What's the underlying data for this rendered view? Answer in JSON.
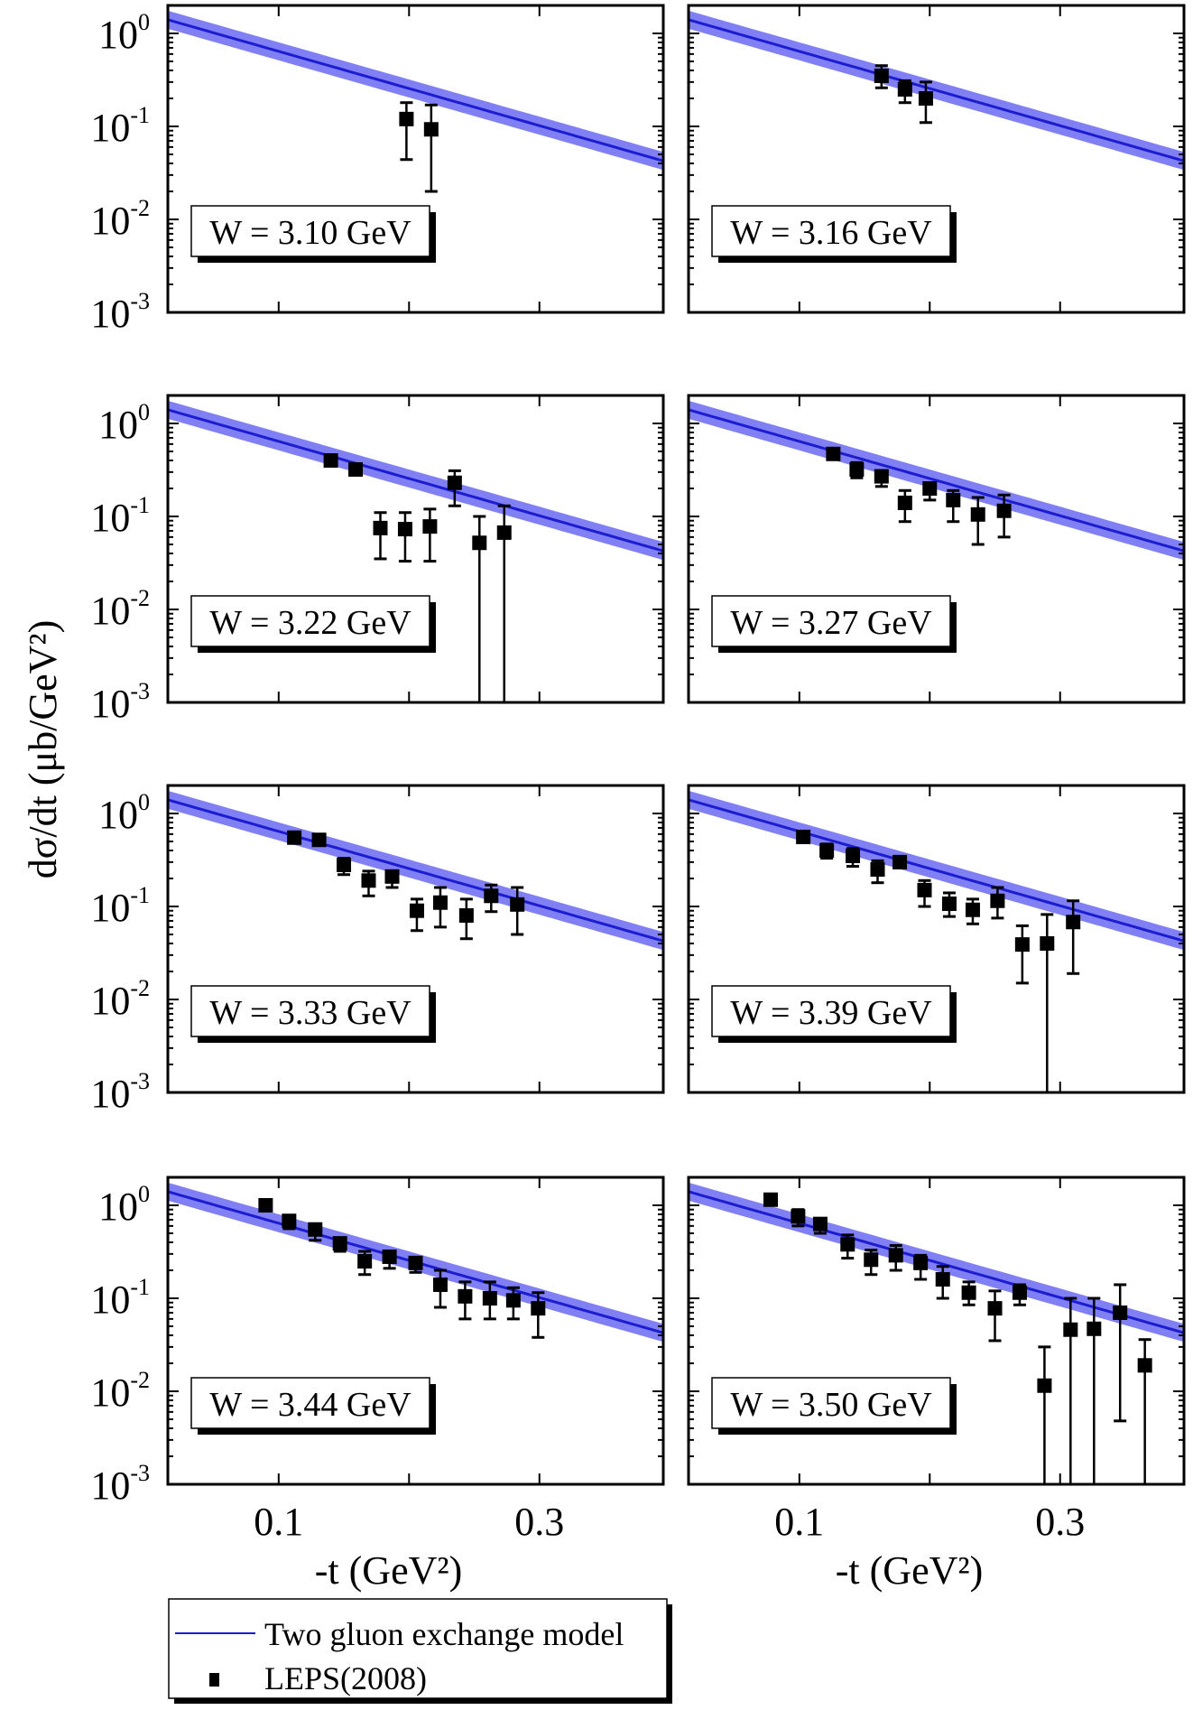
{
  "chart_data": {
    "type": "scatter",
    "layout": "4x2 panels",
    "xlabel": "-t (GeV²)",
    "ylabel": "dσ/dt   (μb/GeV²)",
    "xlim": [
      0.015,
      0.395
    ],
    "ylim": [
      0.001,
      2.0
    ],
    "yscale": "log",
    "xtick_labels": [
      "0.1",
      "0.3"
    ],
    "xticks": [
      0.1,
      0.2,
      0.3
    ],
    "ytick_labels": [
      {
        "base": "10",
        "exp": "0",
        "value": 1
      },
      {
        "base": "10",
        "exp": "-1",
        "value": 0.1
      },
      {
        "base": "10",
        "exp": "-2",
        "value": 0.01
      },
      {
        "base": "10",
        "exp": "-3",
        "value": 0.001
      }
    ],
    "legend": {
      "placement": "bottom-left",
      "entries": [
        {
          "label": "Two gluon exchange model",
          "type": "line"
        },
        {
          "label": "LEPS(2008)",
          "type": "marker"
        }
      ]
    },
    "colors": {
      "model_line": "#1c1cd0",
      "model_band": "#8080f4",
      "data": "#000000"
    },
    "model": {
      "form": "A*exp(-b*t)",
      "A": 1.61,
      "b": 9.2,
      "band_factor": 1.25
    },
    "panels": [
      {
        "label": "W = 3.10 GeV",
        "points": [
          {
            "x": 0.198,
            "y": 0.12,
            "hi": 0.18,
            "lo": 0.044
          },
          {
            "x": 0.217,
            "y": 0.093,
            "hi": 0.17,
            "lo": 0.02
          }
        ]
      },
      {
        "label": "W = 3.16 GeV",
        "points": [
          {
            "x": 0.163,
            "y": 0.35,
            "hi": 0.45,
            "lo": 0.26
          },
          {
            "x": 0.181,
            "y": 0.25,
            "hi": 0.31,
            "lo": 0.18
          },
          {
            "x": 0.197,
            "y": 0.2,
            "hi": 0.3,
            "lo": 0.11
          }
        ]
      },
      {
        "label": "W = 3.22 GeV",
        "points": [
          {
            "x": 0.14,
            "y": 0.4,
            "hi": 0.44,
            "lo": 0.36
          },
          {
            "x": 0.159,
            "y": 0.32,
            "hi": 0.36,
            "lo": 0.28
          },
          {
            "x": 0.178,
            "y": 0.075,
            "hi": 0.11,
            "lo": 0.035
          },
          {
            "x": 0.197,
            "y": 0.073,
            "hi": 0.11,
            "lo": 0.033
          },
          {
            "x": 0.216,
            "y": 0.078,
            "hi": 0.12,
            "lo": 0.033
          },
          {
            "x": 0.235,
            "y": 0.23,
            "hi": 0.31,
            "lo": 0.13
          },
          {
            "x": 0.254,
            "y": 0.052,
            "hi": 0.1,
            "lo": 0.0008
          },
          {
            "x": 0.273,
            "y": 0.067,
            "hi": 0.13,
            "lo": 0.0008
          }
        ]
      },
      {
        "label": "W = 3.27 GeV",
        "points": [
          {
            "x": 0.126,
            "y": 0.47,
            "hi": 0.52,
            "lo": 0.42
          },
          {
            "x": 0.144,
            "y": 0.32,
            "hi": 0.38,
            "lo": 0.26
          },
          {
            "x": 0.163,
            "y": 0.27,
            "hi": 0.31,
            "lo": 0.21
          },
          {
            "x": 0.181,
            "y": 0.14,
            "hi": 0.19,
            "lo": 0.088
          },
          {
            "x": 0.2,
            "y": 0.2,
            "hi": 0.23,
            "lo": 0.15
          },
          {
            "x": 0.218,
            "y": 0.15,
            "hi": 0.19,
            "lo": 0.088
          },
          {
            "x": 0.237,
            "y": 0.105,
            "hi": 0.16,
            "lo": 0.05
          },
          {
            "x": 0.257,
            "y": 0.115,
            "hi": 0.17,
            "lo": 0.06
          }
        ]
      },
      {
        "label": "W = 3.33 GeV",
        "points": [
          {
            "x": 0.112,
            "y": 0.55,
            "hi": 0.6,
            "lo": 0.5
          },
          {
            "x": 0.131,
            "y": 0.52,
            "hi": 0.56,
            "lo": 0.47
          },
          {
            "x": 0.15,
            "y": 0.28,
            "hi": 0.33,
            "lo": 0.22
          },
          {
            "x": 0.169,
            "y": 0.19,
            "hi": 0.24,
            "lo": 0.13
          },
          {
            "x": 0.187,
            "y": 0.21,
            "hi": 0.24,
            "lo": 0.16
          },
          {
            "x": 0.206,
            "y": 0.09,
            "hi": 0.12,
            "lo": 0.055
          },
          {
            "x": 0.224,
            "y": 0.11,
            "hi": 0.16,
            "lo": 0.06
          },
          {
            "x": 0.244,
            "y": 0.08,
            "hi": 0.12,
            "lo": 0.045
          },
          {
            "x": 0.263,
            "y": 0.13,
            "hi": 0.17,
            "lo": 0.088
          },
          {
            "x": 0.283,
            "y": 0.105,
            "hi": 0.16,
            "lo": 0.05
          }
        ]
      },
      {
        "label": "W = 3.39 GeV",
        "points": [
          {
            "x": 0.103,
            "y": 0.56,
            "hi": 0.6,
            "lo": 0.52
          },
          {
            "x": 0.121,
            "y": 0.4,
            "hi": 0.47,
            "lo": 0.33
          },
          {
            "x": 0.141,
            "y": 0.35,
            "hi": 0.42,
            "lo": 0.27
          },
          {
            "x": 0.16,
            "y": 0.25,
            "hi": 0.31,
            "lo": 0.18
          },
          {
            "x": 0.177,
            "y": 0.3,
            "hi": 0.34,
            "lo": 0.26
          },
          {
            "x": 0.196,
            "y": 0.15,
            "hi": 0.19,
            "lo": 0.1
          },
          {
            "x": 0.215,
            "y": 0.107,
            "hi": 0.14,
            "lo": 0.078
          },
          {
            "x": 0.233,
            "y": 0.092,
            "hi": 0.12,
            "lo": 0.065
          },
          {
            "x": 0.252,
            "y": 0.115,
            "hi": 0.16,
            "lo": 0.075
          },
          {
            "x": 0.271,
            "y": 0.039,
            "hi": 0.062,
            "lo": 0.015
          },
          {
            "x": 0.29,
            "y": 0.04,
            "hi": 0.082,
            "lo": 0.0008
          },
          {
            "x": 0.31,
            "y": 0.068,
            "hi": 0.115,
            "lo": 0.019
          }
        ]
      },
      {
        "label": "W = 3.44 GeV",
        "points": [
          {
            "x": 0.09,
            "y": 1.0,
            "hi": 1.08,
            "lo": 0.92
          },
          {
            "x": 0.108,
            "y": 0.68,
            "hi": 0.78,
            "lo": 0.56
          },
          {
            "x": 0.128,
            "y": 0.55,
            "hi": 0.63,
            "lo": 0.42
          },
          {
            "x": 0.147,
            "y": 0.39,
            "hi": 0.44,
            "lo": 0.32
          },
          {
            "x": 0.166,
            "y": 0.25,
            "hi": 0.32,
            "lo": 0.18
          },
          {
            "x": 0.185,
            "y": 0.28,
            "hi": 0.32,
            "lo": 0.21
          },
          {
            "x": 0.205,
            "y": 0.24,
            "hi": 0.27,
            "lo": 0.19
          },
          {
            "x": 0.224,
            "y": 0.14,
            "hi": 0.2,
            "lo": 0.08
          },
          {
            "x": 0.243,
            "y": 0.105,
            "hi": 0.15,
            "lo": 0.06
          },
          {
            "x": 0.262,
            "y": 0.1,
            "hi": 0.15,
            "lo": 0.06
          },
          {
            "x": 0.28,
            "y": 0.095,
            "hi": 0.13,
            "lo": 0.06
          },
          {
            "x": 0.299,
            "y": 0.078,
            "hi": 0.115,
            "lo": 0.038
          }
        ]
      },
      {
        "label": "W = 3.50 GeV",
        "points": [
          {
            "x": 0.078,
            "y": 1.15,
            "hi": 1.22,
            "lo": 1.08
          },
          {
            "x": 0.099,
            "y": 0.76,
            "hi": 0.9,
            "lo": 0.6
          },
          {
            "x": 0.116,
            "y": 0.63,
            "hi": 0.72,
            "lo": 0.5
          },
          {
            "x": 0.137,
            "y": 0.38,
            "hi": 0.48,
            "lo": 0.27
          },
          {
            "x": 0.155,
            "y": 0.26,
            "hi": 0.33,
            "lo": 0.18
          },
          {
            "x": 0.174,
            "y": 0.29,
            "hi": 0.37,
            "lo": 0.2
          },
          {
            "x": 0.193,
            "y": 0.24,
            "hi": 0.29,
            "lo": 0.16
          },
          {
            "x": 0.21,
            "y": 0.16,
            "hi": 0.22,
            "lo": 0.1
          },
          {
            "x": 0.23,
            "y": 0.115,
            "hi": 0.15,
            "lo": 0.085
          },
          {
            "x": 0.25,
            "y": 0.078,
            "hi": 0.12,
            "lo": 0.035
          },
          {
            "x": 0.269,
            "y": 0.115,
            "hi": 0.14,
            "lo": 0.085
          },
          {
            "x": 0.288,
            "y": 0.0115,
            "hi": 0.03,
            "lo": 0.0008
          },
          {
            "x": 0.308,
            "y": 0.046,
            "hi": 0.1,
            "lo": 0.0008
          },
          {
            "x": 0.326,
            "y": 0.047,
            "hi": 0.1,
            "lo": 0.0008
          },
          {
            "x": 0.346,
            "y": 0.07,
            "hi": 0.14,
            "lo": 0.0048
          },
          {
            "x": 0.365,
            "y": 0.019,
            "hi": 0.036,
            "lo": 0.0008
          }
        ]
      }
    ]
  }
}
